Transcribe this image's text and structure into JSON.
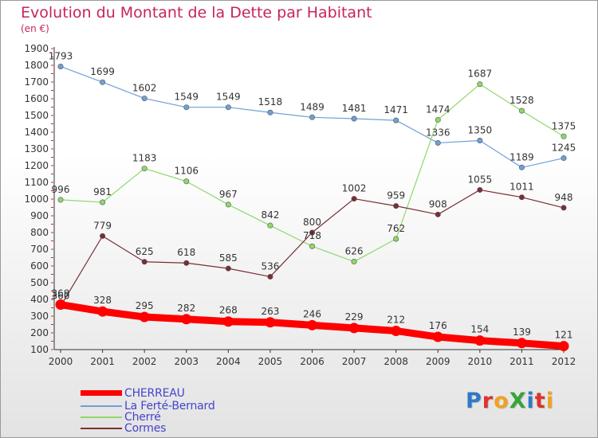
{
  "header": {
    "title": "Evolution du Montant de la Dette par Habitant",
    "subtitle": "(en €)"
  },
  "logo": {
    "text": "ProXiti",
    "letters": [
      {
        "char": "P",
        "color": "#2f79c7"
      },
      {
        "char": "r",
        "color": "#e0322b"
      },
      {
        "char": "o",
        "color": "#f0a21f"
      },
      {
        "char": "X",
        "color": "#37a43c"
      },
      {
        "char": "i",
        "color": "#2f79c7"
      },
      {
        "char": "t",
        "color": "#e0322b"
      },
      {
        "char": "i",
        "color": "#f0a21f"
      }
    ]
  },
  "chart_data": {
    "type": "line",
    "title": "Evolution du Montant de la Dette par Habitant",
    "subtitle": "(en €)",
    "xlabel": "",
    "ylabel": "",
    "ylim": [
      100,
      1900
    ],
    "yticks": [
      100,
      200,
      300,
      400,
      500,
      600,
      700,
      800,
      900,
      1000,
      1100,
      1200,
      1300,
      1400,
      1500,
      1600,
      1700,
      1800,
      1900
    ],
    "x": [
      "2000",
      "2001",
      "2002",
      "2003",
      "2004",
      "2005",
      "2006",
      "2007",
      "2008",
      "2009",
      "2010",
      "2011",
      "2012"
    ],
    "grid": false,
    "legend_position": "bottom-left",
    "series": [
      {
        "name": "CHERREAU",
        "color": "#ff0000",
        "values": [
          369,
          328,
          295,
          282,
          268,
          263,
          246,
          229,
          212,
          176,
          154,
          139,
          121
        ]
      },
      {
        "name": "La Ferté-Bernard",
        "color": "#6fa0d6",
        "values": [
          1793,
          1699,
          1602,
          1549,
          1549,
          1518,
          1489,
          1481,
          1471,
          1336,
          1350,
          1189,
          1245
        ]
      },
      {
        "name": "Cherré",
        "color": "#8fd86a",
        "values": [
          996,
          981,
          1183,
          1106,
          967,
          842,
          718,
          626,
          762,
          1474,
          1687,
          1528,
          1375
        ]
      },
      {
        "name": "Cormes",
        "color": "#7a2e34",
        "values": [
          360,
          779,
          625,
          618,
          585,
          536,
          800,
          1002,
          959,
          908,
          1055,
          1011,
          948
        ]
      }
    ]
  }
}
